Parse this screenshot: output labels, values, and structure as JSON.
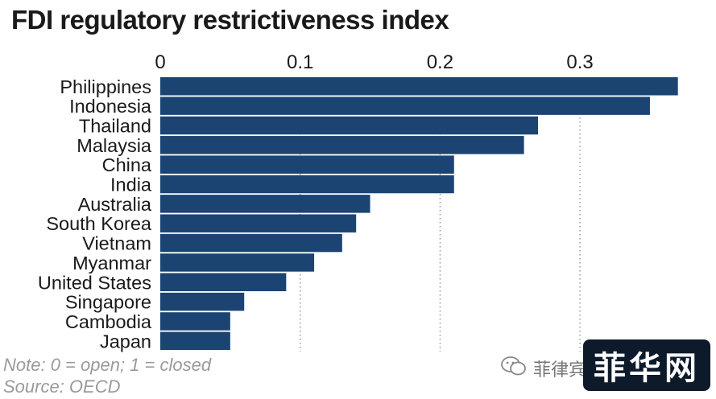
{
  "chart_data": {
    "type": "bar",
    "orientation": "horizontal",
    "title": "FDI regulatory restrictiveness index",
    "categories": [
      "Philippines",
      "Indonesia",
      "Thailand",
      "Malaysia",
      "China",
      "India",
      "Australia",
      "South Korea",
      "Vietnam",
      "Myanmar",
      "United States",
      "Singapore",
      "Cambodia",
      "Japan"
    ],
    "values": [
      0.37,
      0.35,
      0.27,
      0.26,
      0.21,
      0.21,
      0.15,
      0.14,
      0.13,
      0.11,
      0.09,
      0.06,
      0.05,
      0.05
    ],
    "xticks": [
      "0",
      "0.1",
      "0.2",
      "0.3"
    ],
    "xlim": [
      0,
      0.37
    ],
    "axis_position": "top",
    "grid": "vertical-dotted",
    "bar_color": "#1b4472"
  },
  "notes": {
    "note": "Note: 0 = open; 1 = closed",
    "source": "Source: OECD"
  },
  "watermark": {
    "faded_text": "菲律宾",
    "logo_text": "菲华网"
  }
}
